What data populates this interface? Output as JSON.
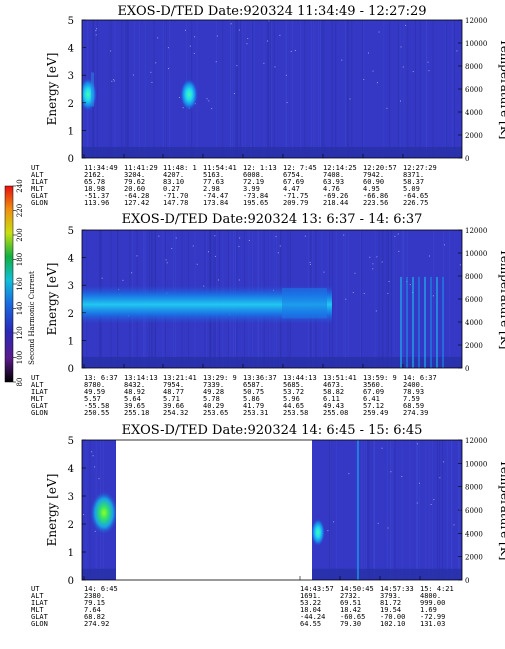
{
  "colorbar": {
    "label": "Second Harmonic Current",
    "ticks": [
      "80",
      "100",
      "120",
      "140",
      "160",
      "180",
      "200",
      "220",
      "240"
    ]
  },
  "chart_data": [
    {
      "type": "heatmap",
      "title": "EXOS-D/TED    Date:920324   11:34:49 - 12:27:29",
      "ylabel": "Energy [eV]",
      "y2label": "Temperature [K]",
      "ylim": [
        0,
        5
      ],
      "yticks": [
        "0",
        "1",
        "2",
        "3",
        "4",
        "5"
      ],
      "y2lim": [
        0,
        12000
      ],
      "y2ticks": [
        "0",
        "2000",
        "4000",
        "6000",
        "8000",
        "10000",
        "12000"
      ],
      "rows": [
        {
          "name": "UT",
          "values": [
            "11:34:49",
            "11:41:29",
            "11:48: 1",
            "11:54:41",
            "12: 1:13",
            "12: 7:45",
            "12:14:25",
            "12:20:57",
            "12:27:29"
          ]
        },
        {
          "name": "ALT",
          "values": [
            "2162.",
            "3204.",
            "4207.",
            "5163.",
            "6008.",
            "6754.",
            "7408.",
            "7942.",
            "8371."
          ]
        },
        {
          "name": "ILAT",
          "values": [
            "65.78",
            "79.62",
            "83.10",
            "77.63",
            "72.19",
            "67.69",
            "63.93",
            "60.90",
            "58.37"
          ]
        },
        {
          "name": "MLT",
          "values": [
            "18.98",
            "20.60",
            "0.27",
            "2.98",
            "3.99",
            "4.47",
            "4.76",
            "4.95",
            "5.09"
          ]
        },
        {
          "name": "GLAT",
          "values": [
            "-51.37",
            "-64.28",
            "-71.70",
            "-74.47",
            "-73.84",
            "-71.75",
            "-69.26",
            "-66.86",
            "-64.65"
          ]
        },
        {
          "name": "GLON",
          "values": [
            "113.96",
            "127.42",
            "147.78",
            "173.84",
            "195.65",
            "209.79",
            "218.44",
            "223.56",
            "226.75"
          ]
        }
      ]
    },
    {
      "type": "heatmap",
      "title": "EXOS-D/TED    Date:920324   13: 6:37 - 14: 6:37",
      "ylabel": "Energy [eV]",
      "y2label": "Temperature [K]",
      "ylim": [
        0,
        5
      ],
      "yticks": [
        "0",
        "1",
        "2",
        "3",
        "4",
        "5"
      ],
      "y2lim": [
        0,
        12000
      ],
      "y2ticks": [
        "0",
        "2000",
        "4000",
        "6000",
        "8000",
        "10000",
        "12000"
      ],
      "rows": [
        {
          "name": "UT",
          "values": [
            "13: 6:37",
            "13:14:13",
            "13:21:41",
            "13:29: 9",
            "13:36:37",
            "13:44:13",
            "13:51:41",
            "13:59: 9",
            "14: 6:37"
          ]
        },
        {
          "name": "ALT",
          "values": [
            "8780.",
            "8432.",
            "7954.",
            "7339.",
            "6587.",
            "5685.",
            "4673.",
            "3560.",
            "2400."
          ]
        },
        {
          "name": "ILAT",
          "values": [
            "49.59",
            "48.92",
            "48.77",
            "49.28",
            "50.75",
            "53.72",
            "58.82",
            "67.09",
            "78.93"
          ]
        },
        {
          "name": "MLT",
          "values": [
            "5.57",
            "5.64",
            "5.71",
            "5.78",
            "5.86",
            "5.96",
            "6.11",
            "6.41",
            "7.59"
          ]
        },
        {
          "name": "GLAT",
          "values": [
            "-55.58",
            "39.65",
            "39.66",
            "40.29",
            "41.79",
            "44.65",
            "49.43",
            "57.12",
            "68.59"
          ]
        },
        {
          "name": "GLON",
          "values": [
            "250.55",
            "255.18",
            "254.32",
            "253.65",
            "253.31",
            "253.58",
            "255.08",
            "259.49",
            "274.39"
          ]
        }
      ]
    },
    {
      "type": "heatmap",
      "title": "EXOS-D/TED    Date:920324   14: 6:45 - 15: 6:45",
      "ylabel": "Energy [eV]",
      "y2label": "Temperature [K]",
      "ylim": [
        0,
        5
      ],
      "yticks": [
        "0",
        "1",
        "2",
        "3",
        "4",
        "5"
      ],
      "y2lim": [
        0,
        12000
      ],
      "y2ticks": [
        "0",
        "2000",
        "4000",
        "6000",
        "8000",
        "10000",
        "12000"
      ],
      "rows": [
        {
          "name": "UT",
          "values": [
            "14: 6:45",
            "14:43:57",
            "14:50:45",
            "14:57:33",
            "15: 4:21"
          ]
        },
        {
          "name": "ALT",
          "values": [
            "2380.",
            "1691.",
            "2732.",
            "3793.",
            "4800."
          ]
        },
        {
          "name": "ILAT",
          "values": [
            "79.15",
            "53.22",
            "69.51",
            "81.72",
            "999.00"
          ]
        },
        {
          "name": "MLT",
          "values": [
            "7.64",
            "18.04",
            "18.42",
            "19.54",
            "1.69"
          ]
        },
        {
          "name": "GLAT",
          "values": [
            "68.82",
            "-44.24",
            "-60.65",
            "-70.00",
            "-72.99"
          ]
        },
        {
          "name": "GLON",
          "values": [
            "274.92",
            "64.55",
            "79.30",
            "102.10",
            "131.03"
          ]
        }
      ]
    }
  ]
}
